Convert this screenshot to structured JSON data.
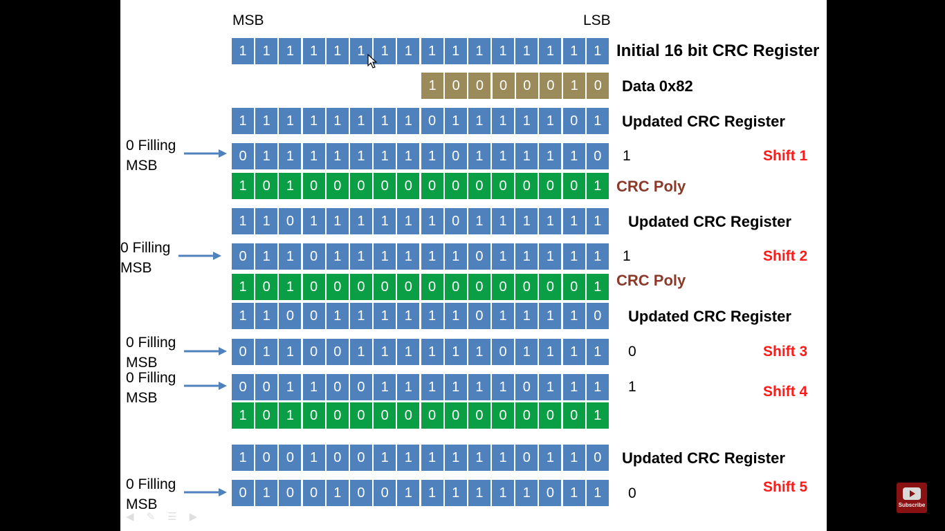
{
  "header": {
    "msb": "MSB",
    "lsb": "LSB"
  },
  "rows": [
    {
      "bits": "1111111111111111",
      "label": "Initial 16 bit CRC Register"
    },
    {
      "bits": "10000010",
      "label": "Data 0x82"
    },
    {
      "bits": "1111111101111101",
      "label": "Updated CRC Register"
    },
    {
      "bits": "0111111110111110",
      "bit_out": "1",
      "shift": "Shift 1",
      "fill": "0 Filling\nMSB"
    },
    {
      "bits": "1010000000000001",
      "label": "CRC Poly"
    },
    {
      "bits": "1101111110111111",
      "label": "Updated CRC Register"
    },
    {
      "bits": "0110111111011111",
      "bit_out": "1",
      "shift": "Shift 2",
      "fill": "0 Filling\nMSB"
    },
    {
      "bits": "1010000000000001",
      "label": "CRC Poly"
    },
    {
      "bits": "1100111111011110",
      "label": "Updated CRC Register"
    },
    {
      "bits": "0110011111101111",
      "bit_out": "0",
      "shift": "Shift 3",
      "fill": "0 Filling\nMSB"
    },
    {
      "bits": "0011001111110111",
      "bit_out": "1",
      "shift": "Shift 4",
      "fill": "0 Filling\nMSB"
    },
    {
      "bits": "1010000000000001"
    },
    {
      "bits": "1001001111110110",
      "label": "Updated CRC Register"
    },
    {
      "bits": "0100100111111011",
      "bit_out": "0",
      "shift": "Shift 5",
      "fill": "0 Filling\nMSB"
    }
  ],
  "youtube": {
    "label": "Subscribe"
  },
  "colors": {
    "register": "#4f81bd",
    "poly": "#0b9f45",
    "data": "#9b8a5a",
    "shift": "#ff1a1a",
    "poly_label": "#8b3a2a",
    "arrow": "#4f81bd"
  }
}
